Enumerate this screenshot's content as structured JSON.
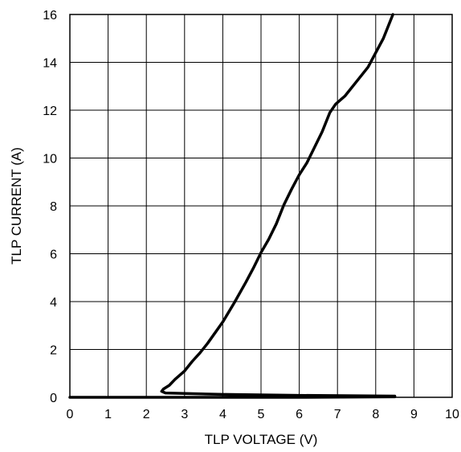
{
  "chart_data": {
    "type": "line",
    "title": "",
    "xlabel": "TLP VOLTAGE (V)",
    "ylabel": "TLP CURRENT (A)",
    "xlim": [
      0,
      10
    ],
    "ylim": [
      0,
      16
    ],
    "x_ticks": [
      0,
      1,
      2,
      3,
      4,
      5,
      6,
      7,
      8,
      9,
      10
    ],
    "y_ticks": [
      0,
      2,
      4,
      6,
      8,
      10,
      12,
      14,
      16
    ],
    "grid": true,
    "legend": "none",
    "series": [
      {
        "color": "#000000",
        "x": [
          0.0,
          2.0,
          4.0,
          6.0,
          8.5,
          8.5,
          6.0,
          4.0,
          2.5,
          2.4,
          2.45,
          2.6,
          2.75,
          3.0,
          3.2,
          3.4,
          3.6,
          3.8,
          4.0,
          4.3,
          4.6,
          4.8,
          5.0,
          5.2,
          5.4,
          5.6,
          5.8,
          6.0,
          6.2,
          6.4,
          6.6,
          6.8,
          6.95,
          7.2,
          7.5,
          7.8,
          8.0,
          8.2,
          8.35,
          8.45
        ],
        "y": [
          0.0,
          0.0,
          0.0,
          0.0,
          0.02,
          0.05,
          0.08,
          0.12,
          0.18,
          0.25,
          0.35,
          0.5,
          0.75,
          1.1,
          1.5,
          1.85,
          2.25,
          2.7,
          3.15,
          3.95,
          4.8,
          5.4,
          6.05,
          6.6,
          7.25,
          8.05,
          8.7,
          9.3,
          9.8,
          10.45,
          11.1,
          11.9,
          12.25,
          12.6,
          13.2,
          13.8,
          14.4,
          15.0,
          15.6,
          16.0
        ]
      }
    ]
  }
}
